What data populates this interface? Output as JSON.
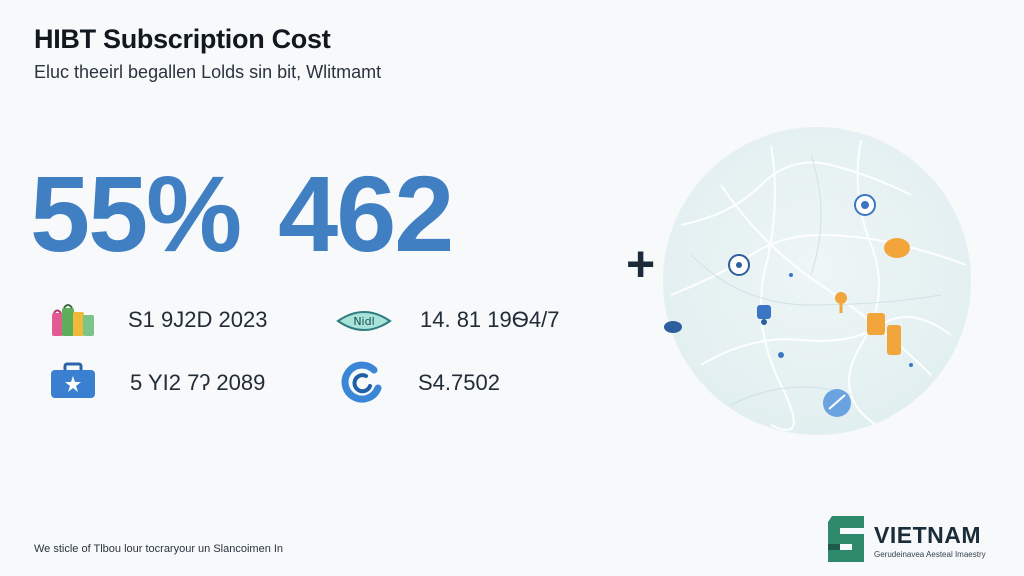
{
  "header": {
    "title": "HIBT Subscription Cost",
    "subtitle": "Eluc theeirl begallen Lolds sin bit, Wlitmamt"
  },
  "big_stats": [
    "55%",
    "462"
  ],
  "stats": [
    {
      "icon": "gift-bags-icon",
      "value": "S1 9Ј2D 2023"
    },
    {
      "icon": "speech-bubble-icon",
      "icon_label": "Nidl",
      "value": "14. 81 19Ѳ4/7"
    },
    {
      "icon": "briefcase-icon",
      "value": "5 YI2 7ʔ 2089"
    },
    {
      "icon": "refresh-circle-icon",
      "value": "S4.7502"
    }
  ],
  "plus_symbol": "+",
  "footer": "We sticle of Tlbou lour tocraryour un Slancoimen In",
  "brand": {
    "name": "VIETNAM",
    "tagline": "Gerudeinavea Aesteal Imaestry"
  },
  "colors": {
    "accent": "#3f7fc2",
    "map_fill": "#e7f1f2",
    "brand_green": "#2f8a6c",
    "pin_orange": "#f2a53a",
    "pin_blue": "#3b76c4"
  }
}
